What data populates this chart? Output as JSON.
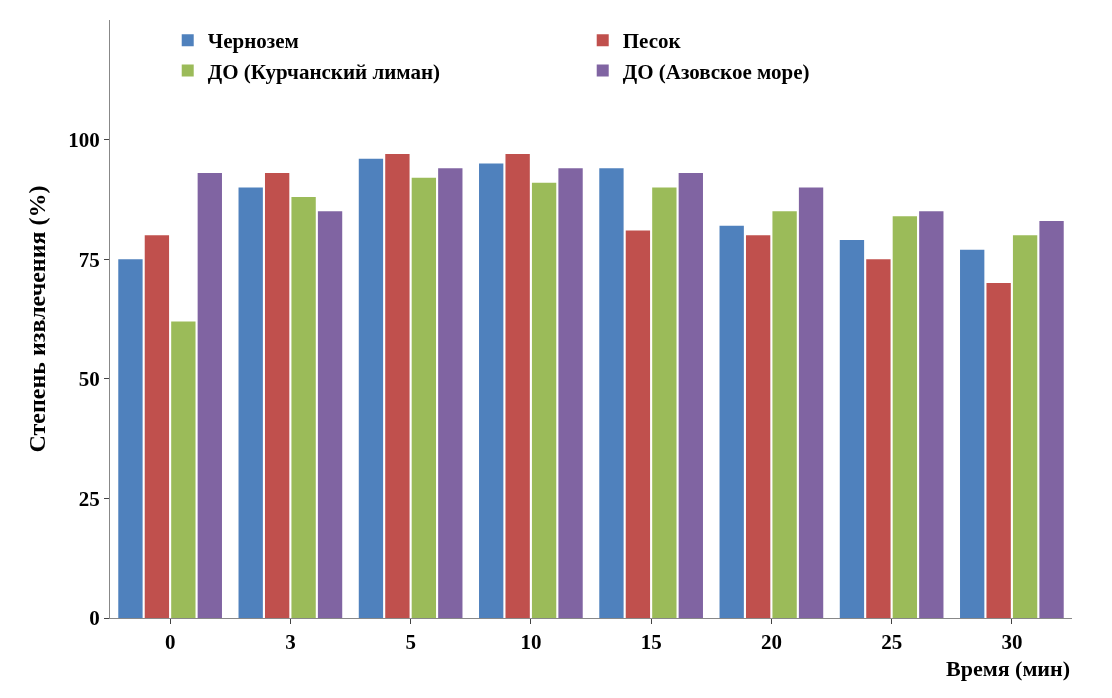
{
  "chart_data": {
    "type": "bar",
    "xlabel": "Время (мин)",
    "ylabel": "Степень извлечения (%)",
    "categories": [
      "0",
      "3",
      "5",
      "10",
      "15",
      "20",
      "25",
      "30"
    ],
    "series": [
      {
        "name": "Чернозем",
        "color": "#4f81bd",
        "values": [
          75,
          90,
          96,
          95,
          94,
          82,
          79,
          77
        ]
      },
      {
        "name": "Песок",
        "color": "#c0504d",
        "values": [
          80,
          93,
          97,
          97,
          81,
          80,
          75,
          70
        ]
      },
      {
        "name": "ДО (Курчанский лиман)",
        "color": "#9bbb59",
        "values": [
          62,
          88,
          92,
          91,
          90,
          85,
          84,
          80
        ]
      },
      {
        "name": "ДО (Азовское море)",
        "color": "#8064a2",
        "values": [
          93,
          85,
          94,
          94,
          93,
          90,
          85,
          83
        ]
      }
    ],
    "ylim": [
      0,
      125
    ],
    "yticks": [
      0,
      25,
      50,
      75,
      100
    ],
    "legend": "top"
  }
}
